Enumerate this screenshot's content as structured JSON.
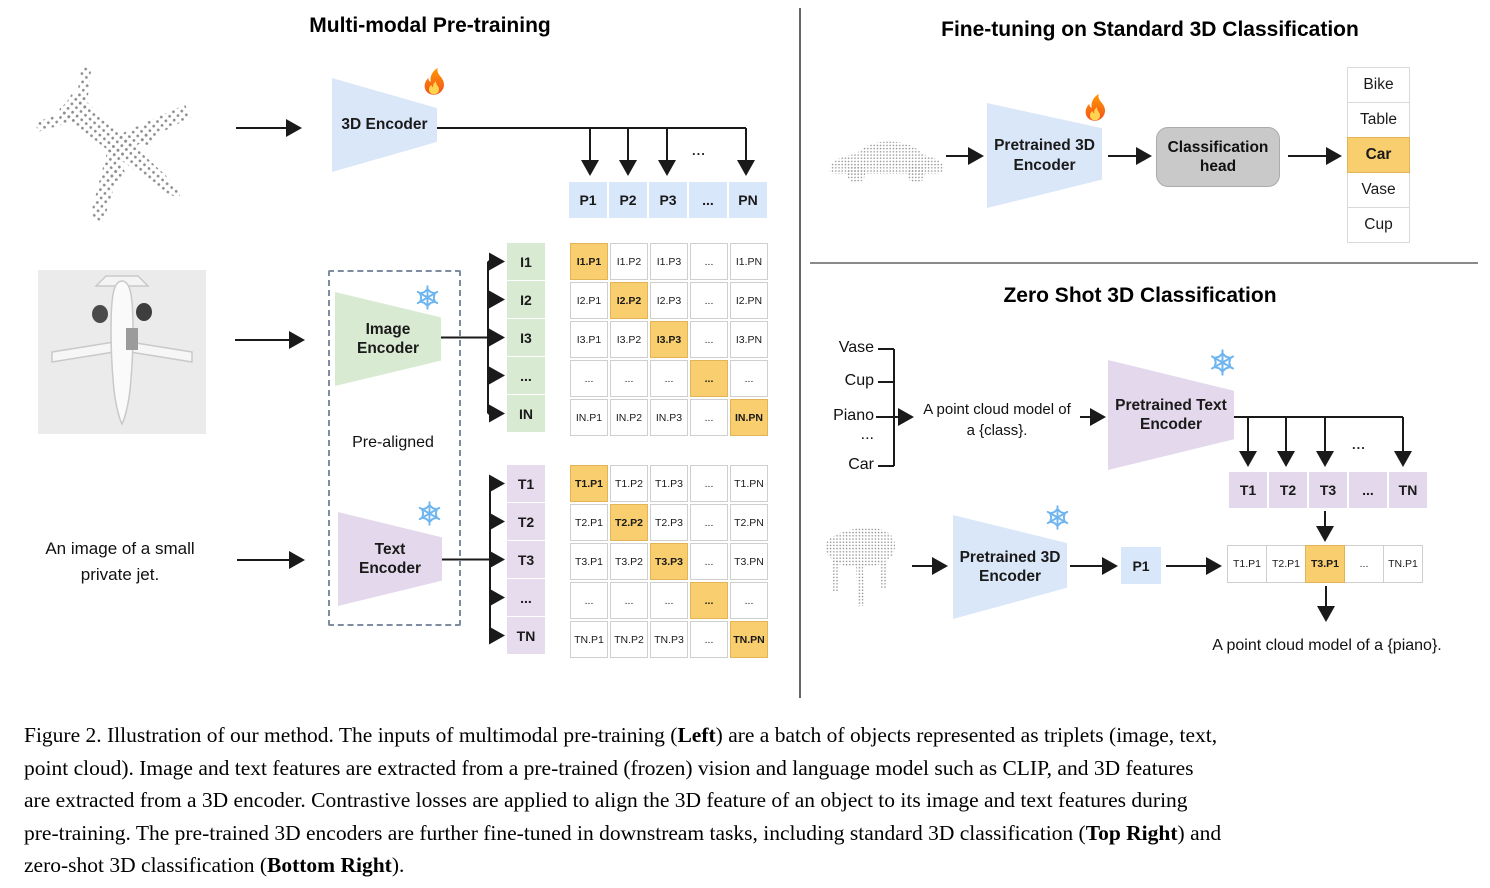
{
  "left": {
    "title": "Multi-modal Pre-training",
    "encoder_3d_label": "3D Encoder",
    "image_encoder": {
      "line1": "Image",
      "line2": "Encoder"
    },
    "text_encoder": {
      "line1": "Text",
      "line2": "Encoder"
    },
    "pre_aligned_label": "Pre-aligned",
    "text_input": {
      "line1": "An image of a small",
      "line2": "private jet."
    },
    "p_row": [
      "P1",
      "P2",
      "P3",
      "...",
      "PN"
    ],
    "image_matrix": {
      "row_labels": [
        "I1",
        "I2",
        "I3",
        "...",
        "IN"
      ],
      "rows": [
        [
          {
            "t": "I1.P1",
            "h": true
          },
          {
            "t": "I1.P2"
          },
          {
            "t": "I1.P3"
          },
          {
            "t": "..."
          },
          {
            "t": "I1.PN"
          }
        ],
        [
          {
            "t": "I2.P1"
          },
          {
            "t": "I2.P2",
            "h": true
          },
          {
            "t": "I2.P3"
          },
          {
            "t": "..."
          },
          {
            "t": "I2.PN"
          }
        ],
        [
          {
            "t": "I3.P1"
          },
          {
            "t": "I3.P2"
          },
          {
            "t": "I3.P3",
            "h": true
          },
          {
            "t": "..."
          },
          {
            "t": "I3.PN"
          }
        ],
        [
          {
            "t": "..."
          },
          {
            "t": "..."
          },
          {
            "t": "..."
          },
          {
            "t": "...",
            "h": true
          },
          {
            "t": "..."
          }
        ],
        [
          {
            "t": "IN.P1"
          },
          {
            "t": "IN.P2"
          },
          {
            "t": "IN.P3"
          },
          {
            "t": "..."
          },
          {
            "t": "IN.PN",
            "h": true
          }
        ]
      ]
    },
    "text_matrix": {
      "row_labels": [
        "T1",
        "T2",
        "T3",
        "...",
        "TN"
      ],
      "rows": [
        [
          {
            "t": "T1.P1",
            "h": true
          },
          {
            "t": "T1.P2"
          },
          {
            "t": "T1.P3"
          },
          {
            "t": "..."
          },
          {
            "t": "T1.PN"
          }
        ],
        [
          {
            "t": "T2.P1"
          },
          {
            "t": "T2.P2",
            "h": true
          },
          {
            "t": "T2.P3"
          },
          {
            "t": "..."
          },
          {
            "t": "T2.PN"
          }
        ],
        [
          {
            "t": "T3.P1"
          },
          {
            "t": "T3.P2"
          },
          {
            "t": "T3.P3",
            "h": true
          },
          {
            "t": "..."
          },
          {
            "t": "T3.PN"
          }
        ],
        [
          {
            "t": "..."
          },
          {
            "t": "..."
          },
          {
            "t": "..."
          },
          {
            "t": "...",
            "h": true
          },
          {
            "t": "..."
          }
        ],
        [
          {
            "t": "TN.P1"
          },
          {
            "t": "TN.P2"
          },
          {
            "t": "TN.P3"
          },
          {
            "t": "..."
          },
          {
            "t": "TN.PN",
            "h": true
          }
        ]
      ]
    }
  },
  "top_right": {
    "title": "Fine-tuning on Standard 3D Classification",
    "encoder": {
      "line1": "Pretrained 3D",
      "line2": "Encoder"
    },
    "head": {
      "line1": "Classification",
      "line2": "head"
    },
    "classes": [
      {
        "t": "Bike"
      },
      {
        "t": "Table"
      },
      {
        "t": "Car",
        "h": true
      },
      {
        "t": "Vase"
      },
      {
        "t": "Cup"
      }
    ]
  },
  "bottom_right": {
    "title": "Zero Shot 3D Classification",
    "class_words": [
      "Vase",
      "Cup",
      "Piano",
      "...",
      "Car"
    ],
    "prompt": {
      "line1": "A point cloud model of",
      "line2": "a {class}."
    },
    "text_encoder": {
      "line1": "Pretrained Text",
      "line2": "Encoder"
    },
    "encoder_3d": {
      "line1": "Pretrained 3D",
      "line2": "Encoder"
    },
    "t_row": [
      "T1",
      "T2",
      "T3",
      "...",
      "TN"
    ],
    "p1_label": "P1",
    "sim_row": [
      {
        "t": "T1.P1"
      },
      {
        "t": "T2.P1"
      },
      {
        "t": "T3.P1",
        "h": true
      },
      {
        "t": "..."
      },
      {
        "t": "TN.P1"
      }
    ],
    "result_text": "A point cloud model of a {piano}."
  },
  "misc": {
    "dots": "..."
  },
  "icons": {
    "trainable": "fire-icon",
    "frozen": "snowflake-icon"
  },
  "colors": {
    "encoder_blue": "#dae7f8",
    "encoder_green": "#d9ead3",
    "encoder_purple": "#e3d8ec",
    "cell_blue": "#d9e7fb",
    "highlight_orange": "#f9ce6e",
    "head_gray": "#c9c9c9"
  },
  "caption": {
    "lines": [
      {
        "pre": "Figure 2. Illustration of our method. The inputs of multimodal pre-training (",
        "bold": "Left",
        "post": ") are a batch of objects represented as triplets (image, text,"
      },
      {
        "pre": "point cloud). Image and text features are extracted from a pre-trained (frozen) vision and language model such as CLIP, and 3D features",
        "bold": "",
        "post": ""
      },
      {
        "pre": "are extracted from a 3D encoder. Contrastive losses are applied to align the 3D feature of an object to its image and text features during",
        "bold": "",
        "post": ""
      },
      {
        "pre": "pre-training. The pre-trained 3D encoders are further fine-tuned in downstream tasks, including standard 3D classification (",
        "bold": "Top Right",
        "post": ") and"
      },
      {
        "pre": "zero-shot 3D classification (",
        "bold": "Bottom Right",
        "post": ")."
      }
    ]
  }
}
